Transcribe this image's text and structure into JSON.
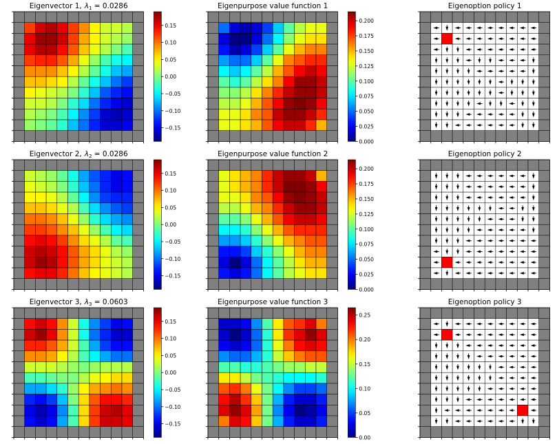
{
  "figure": {
    "colormap": "jet",
    "wall_color": "#808080",
    "goal_color": "#ff0000",
    "grid_line_color": "#000000",
    "arrow_color": "#000000"
  },
  "chart_data": [
    {
      "type": "heatmap",
      "title_text": "Eigenvector 1,",
      "title_math": "λ",
      "title_sub": "1",
      "title_rest": " = 0.0286",
      "colorbar": {
        "min": -0.19,
        "max": 0.19,
        "ticks": [
          {
            "v": 0.15,
            "label": "0.15"
          },
          {
            "v": 0.1,
            "label": "0.10"
          },
          {
            "v": 0.05,
            "label": "0.05"
          },
          {
            "v": 0.0,
            "label": "0.00"
          },
          {
            "v": -0.05,
            "label": "−0.05"
          },
          {
            "v": -0.1,
            "label": "−0.10"
          },
          {
            "v": -0.15,
            "label": "−0.15"
          }
        ]
      },
      "values": [
        [
          0.12,
          0.16,
          0.17,
          0.15,
          0.12,
          0.09,
          0.05,
          0.03,
          0.03,
          0.02
        ],
        [
          0.15,
          0.18,
          0.18,
          0.16,
          0.12,
          0.08,
          0.05,
          0.03,
          0.02,
          0.01
        ],
        [
          0.15,
          0.17,
          0.17,
          0.14,
          0.11,
          0.07,
          0.04,
          0.02,
          0.0,
          -0.02
        ],
        [
          0.12,
          0.13,
          0.13,
          0.11,
          0.08,
          0.04,
          0.01,
          -0.02,
          -0.04,
          -0.05
        ],
        [
          0.09,
          0.09,
          0.09,
          0.07,
          0.05,
          0.02,
          -0.01,
          -0.04,
          -0.07,
          -0.08
        ],
        [
          0.07,
          0.07,
          0.06,
          0.05,
          0.02,
          -0.01,
          -0.04,
          -0.07,
          -0.1,
          -0.12
        ],
        [
          0.05,
          0.04,
          0.03,
          0.02,
          0.0,
          -0.03,
          -0.07,
          -0.11,
          -0.13,
          -0.14
        ],
        [
          0.03,
          0.03,
          0.02,
          0.0,
          -0.03,
          -0.06,
          -0.1,
          -0.13,
          -0.15,
          -0.16
        ],
        [
          0.02,
          0.01,
          0.0,
          -0.02,
          -0.05,
          -0.09,
          -0.12,
          -0.16,
          -0.17,
          -0.16
        ],
        [
          0.01,
          0.0,
          -0.01,
          -0.03,
          -0.07,
          -0.1,
          -0.13,
          -0.16,
          -0.16,
          -0.15
        ]
      ]
    },
    {
      "type": "heatmap",
      "title_text": "Eigenpurpose value function 1",
      "colorbar": {
        "min": 0.0,
        "max": 0.215,
        "ticks": [
          {
            "v": 0.2,
            "label": "0.200"
          },
          {
            "v": 0.175,
            "label": "0.175"
          },
          {
            "v": 0.15,
            "label": "0.150"
          },
          {
            "v": 0.125,
            "label": "0.125"
          },
          {
            "v": 0.1,
            "label": "0.100"
          },
          {
            "v": 0.075,
            "label": "0.075"
          },
          {
            "v": 0.05,
            "label": "0.050"
          },
          {
            "v": 0.025,
            "label": "0.025"
          },
          {
            "v": 0.0,
            "label": "0.000"
          }
        ]
      },
      "values": [
        [
          0.05,
          0.02,
          0.01,
          0.02,
          0.04,
          0.07,
          0.1,
          0.12,
          0.13,
          0.13
        ],
        [
          0.02,
          0.0,
          0.0,
          0.02,
          0.05,
          0.08,
          0.11,
          0.13,
          0.14,
          0.14
        ],
        [
          0.03,
          0.01,
          0.02,
          0.04,
          0.07,
          0.1,
          0.13,
          0.15,
          0.16,
          0.16
        ],
        [
          0.06,
          0.05,
          0.05,
          0.07,
          0.1,
          0.13,
          0.16,
          0.17,
          0.18,
          0.18
        ],
        [
          0.08,
          0.07,
          0.08,
          0.1,
          0.12,
          0.15,
          0.17,
          0.19,
          0.2,
          0.19
        ],
        [
          0.1,
          0.09,
          0.1,
          0.12,
          0.14,
          0.16,
          0.19,
          0.21,
          0.21,
          0.2
        ],
        [
          0.11,
          0.11,
          0.12,
          0.14,
          0.16,
          0.18,
          0.2,
          0.21,
          0.21,
          0.2
        ],
        [
          0.12,
          0.12,
          0.13,
          0.15,
          0.17,
          0.19,
          0.21,
          0.22,
          0.21,
          0.19
        ],
        [
          0.13,
          0.13,
          0.14,
          0.16,
          0.17,
          0.2,
          0.21,
          0.21,
          0.2,
          0.18
        ],
        [
          0.13,
          0.13,
          0.14,
          0.15,
          0.17,
          0.19,
          0.2,
          0.2,
          0.18,
          0.15
        ]
      ]
    },
    {
      "type": "policy",
      "title_text": "Eigenoption policy 1",
      "goal": [
        1,
        1
      ],
      "arrows": [
        "LDLLLLLLLL",
        "LXLLLLLLLL",
        "LDDLLLLLLL",
        "DDDLDDLLLD",
        "DDDDLLLLLD",
        "DDDDDDLDDD",
        "DDDDDDLDDD",
        "DDDDLDDLDD",
        "DDDLLLLLDD",
        "DDLLLLLLDD"
      ]
    },
    {
      "type": "heatmap",
      "title_text": "Eigenvector 2,",
      "title_math": "λ",
      "title_sub": "2",
      "title_rest": " = 0.0286",
      "colorbar": {
        "min": -0.19,
        "max": 0.19,
        "ticks": [
          {
            "v": 0.15,
            "label": "0.15"
          },
          {
            "v": 0.1,
            "label": "0.10"
          },
          {
            "v": 0.05,
            "label": "0.05"
          },
          {
            "v": 0.0,
            "label": "0.00"
          },
          {
            "v": -0.05,
            "label": "−0.05"
          },
          {
            "v": -0.1,
            "label": "−0.10"
          },
          {
            "v": -0.15,
            "label": "−0.15"
          }
        ]
      },
      "values": [
        [
          0.03,
          0.02,
          0.01,
          -0.01,
          -0.04,
          -0.08,
          -0.11,
          -0.13,
          -0.15,
          -0.14
        ],
        [
          0.04,
          0.03,
          0.02,
          0.0,
          -0.03,
          -0.07,
          -0.1,
          -0.13,
          -0.15,
          -0.14
        ],
        [
          0.05,
          0.05,
          0.04,
          0.02,
          -0.01,
          -0.05,
          -0.09,
          -0.12,
          -0.13,
          -0.13
        ],
        [
          0.07,
          0.07,
          0.06,
          0.04,
          0.02,
          -0.02,
          -0.06,
          -0.09,
          -0.11,
          -0.12
        ],
        [
          0.1,
          0.1,
          0.09,
          0.07,
          0.04,
          0.01,
          -0.03,
          -0.06,
          -0.08,
          -0.09
        ],
        [
          0.12,
          0.12,
          0.11,
          0.09,
          0.07,
          0.04,
          0.01,
          -0.02,
          -0.05,
          -0.06
        ],
        [
          0.14,
          0.15,
          0.14,
          0.12,
          0.09,
          0.06,
          0.04,
          0.02,
          -0.01,
          -0.02
        ],
        [
          0.16,
          0.17,
          0.16,
          0.14,
          0.11,
          0.08,
          0.06,
          0.04,
          0.02,
          0.01
        ],
        [
          0.16,
          0.18,
          0.17,
          0.14,
          0.11,
          0.08,
          0.06,
          0.04,
          0.03,
          0.02
        ],
        [
          0.14,
          0.15,
          0.15,
          0.13,
          0.1,
          0.07,
          0.05,
          0.04,
          0.03,
          0.02
        ]
      ]
    },
    {
      "type": "heatmap",
      "title_text": "Eigenpurpose value function 2",
      "colorbar": {
        "min": 0.0,
        "max": 0.215,
        "ticks": [
          {
            "v": 0.2,
            "label": "0.200"
          },
          {
            "v": 0.175,
            "label": "0.175"
          },
          {
            "v": 0.15,
            "label": "0.150"
          },
          {
            "v": 0.125,
            "label": "0.125"
          },
          {
            "v": 0.1,
            "label": "0.100"
          },
          {
            "v": 0.075,
            "label": "0.075"
          },
          {
            "v": 0.05,
            "label": "0.050"
          },
          {
            "v": 0.025,
            "label": "0.025"
          },
          {
            "v": 0.0,
            "label": "0.000"
          }
        ]
      },
      "values": [
        [
          0.13,
          0.14,
          0.15,
          0.16,
          0.18,
          0.2,
          0.21,
          0.21,
          0.2,
          0.15
        ],
        [
          0.13,
          0.14,
          0.15,
          0.16,
          0.18,
          0.2,
          0.22,
          0.22,
          0.21,
          0.19
        ],
        [
          0.13,
          0.13,
          0.14,
          0.16,
          0.17,
          0.19,
          0.21,
          0.22,
          0.21,
          0.2
        ],
        [
          0.12,
          0.12,
          0.13,
          0.15,
          0.16,
          0.18,
          0.2,
          0.21,
          0.21,
          0.2
        ],
        [
          0.1,
          0.1,
          0.11,
          0.13,
          0.15,
          0.17,
          0.19,
          0.2,
          0.2,
          0.19
        ],
        [
          0.08,
          0.08,
          0.09,
          0.11,
          0.13,
          0.15,
          0.17,
          0.18,
          0.18,
          0.18
        ],
        [
          0.06,
          0.06,
          0.07,
          0.09,
          0.11,
          0.13,
          0.15,
          0.16,
          0.17,
          0.17
        ],
        [
          0.03,
          0.03,
          0.04,
          0.07,
          0.09,
          0.11,
          0.13,
          0.15,
          0.16,
          0.16
        ],
        [
          0.02,
          0.0,
          0.02,
          0.05,
          0.08,
          0.1,
          0.12,
          0.14,
          0.15,
          0.15
        ],
        [
          0.03,
          0.02,
          0.03,
          0.05,
          0.08,
          0.1,
          0.12,
          0.13,
          0.14,
          0.14
        ]
      ]
    },
    {
      "type": "policy",
      "title_text": "Eigenoption policy 2",
      "goal": [
        8,
        1
      ],
      "arrows": [
        "DDDLLLLLLD",
        "DDDLLLLLLD",
        "DDDLLLLLLD",
        "DDDDDDLLDD",
        "DDDDDLLLDD",
        "DDDDLLLLLD",
        "DDDLLLLLLL",
        "LDDLLLLLLL",
        "LXLLLLLLLL",
        "LDLLLLLLLL"
      ]
    },
    {
      "type": "heatmap",
      "title_text": "Eigenvector 3,",
      "title_math": "λ",
      "title_sub": "3",
      "title_rest": " = 0.0603",
      "colorbar": {
        "min": -0.19,
        "max": 0.19,
        "ticks": [
          {
            "v": 0.15,
            "label": "0.15"
          },
          {
            "v": 0.1,
            "label": "0.10"
          },
          {
            "v": 0.05,
            "label": "0.05"
          },
          {
            "v": 0.0,
            "label": "0.00"
          },
          {
            "v": -0.05,
            "label": "−0.05"
          },
          {
            "v": -0.1,
            "label": "−0.10"
          },
          {
            "v": -0.15,
            "label": "−0.15"
          }
        ]
      },
      "values": [
        [
          0.14,
          0.16,
          0.14,
          0.09,
          0.03,
          -0.04,
          -0.09,
          -0.12,
          -0.15,
          -0.14
        ],
        [
          0.16,
          0.18,
          0.15,
          0.09,
          0.03,
          -0.04,
          -0.1,
          -0.13,
          -0.16,
          -0.16
        ],
        [
          0.13,
          0.13,
          0.11,
          0.08,
          0.03,
          -0.02,
          -0.08,
          -0.12,
          -0.14,
          -0.14
        ],
        [
          0.09,
          0.09,
          0.08,
          0.05,
          0.02,
          -0.02,
          -0.05,
          -0.08,
          -0.1,
          -0.1
        ],
        [
          0.03,
          0.03,
          0.03,
          0.02,
          0.01,
          0.0,
          0.01,
          0.02,
          0.02,
          0.02
        ],
        [
          -0.02,
          -0.02,
          -0.01,
          0.0,
          0.0,
          0.02,
          0.04,
          0.05,
          0.06,
          0.06
        ],
        [
          -0.08,
          -0.08,
          -0.06,
          -0.03,
          0.01,
          0.05,
          0.08,
          0.09,
          0.1,
          0.09
        ],
        [
          -0.13,
          -0.14,
          -0.12,
          -0.07,
          0.0,
          0.06,
          0.11,
          0.14,
          0.14,
          0.13
        ],
        [
          -0.15,
          -0.17,
          -0.15,
          -0.09,
          -0.02,
          0.06,
          0.12,
          0.16,
          0.17,
          0.15
        ],
        [
          -0.14,
          -0.16,
          -0.14,
          -0.08,
          -0.02,
          0.06,
          0.12,
          0.16,
          0.16,
          0.15
        ]
      ]
    },
    {
      "type": "heatmap",
      "title_text": "Eigenpurpose value function 3",
      "colorbar": {
        "min": 0.0,
        "max": 0.265,
        "ticks": [
          {
            "v": 0.25,
            "label": "0.25"
          },
          {
            "v": 0.2,
            "label": "0.20"
          },
          {
            "v": 0.15,
            "label": "0.15"
          },
          {
            "v": 0.1,
            "label": "0.10"
          },
          {
            "v": 0.05,
            "label": "0.05"
          },
          {
            "v": 0.0,
            "label": "0.00"
          }
        ]
      },
      "values": [
        [
          0.02,
          0.02,
          0.03,
          0.07,
          0.12,
          0.17,
          0.21,
          0.22,
          0.24,
          0.2
        ],
        [
          0.02,
          0.0,
          0.02,
          0.06,
          0.11,
          0.17,
          0.22,
          0.24,
          0.26,
          0.24
        ],
        [
          0.03,
          0.02,
          0.03,
          0.06,
          0.11,
          0.16,
          0.2,
          0.23,
          0.24,
          0.23
        ],
        [
          0.07,
          0.06,
          0.06,
          0.08,
          0.11,
          0.15,
          0.18,
          0.2,
          0.21,
          0.21
        ],
        [
          0.12,
          0.12,
          0.11,
          0.11,
          0.12,
          0.13,
          0.14,
          0.14,
          0.15,
          0.15
        ],
        [
          0.17,
          0.17,
          0.15,
          0.13,
          0.12,
          0.11,
          0.1,
          0.1,
          0.1,
          0.11
        ],
        [
          0.21,
          0.22,
          0.2,
          0.16,
          0.13,
          0.1,
          0.07,
          0.05,
          0.05,
          0.06
        ],
        [
          0.23,
          0.25,
          0.22,
          0.18,
          0.13,
          0.08,
          0.04,
          0.02,
          0.02,
          0.04
        ],
        [
          0.24,
          0.26,
          0.24,
          0.19,
          0.13,
          0.07,
          0.03,
          0.0,
          0.01,
          0.03
        ],
        [
          0.2,
          0.24,
          0.23,
          0.18,
          0.13,
          0.08,
          0.04,
          0.02,
          0.02,
          0.04
        ]
      ]
    },
    {
      "type": "policy",
      "title_text": "Eigenoption policy 3",
      "goal_a": [
        1,
        1
      ],
      "goal": [
        8,
        8
      ],
      "arrows": [
        "LDLLLLLLLL",
        "LXLLLLLLLL",
        "DDDLLLLLLL",
        "DDDDLLLLLL",
        "DDDDDDLLLL",
        "DDDDDDLLLL",
        "DDDDDLLLLL",
        "DDDLLLLLLL",
        "DLLLLLLLXL",
        "DDLLLLLLDD"
      ]
    }
  ]
}
